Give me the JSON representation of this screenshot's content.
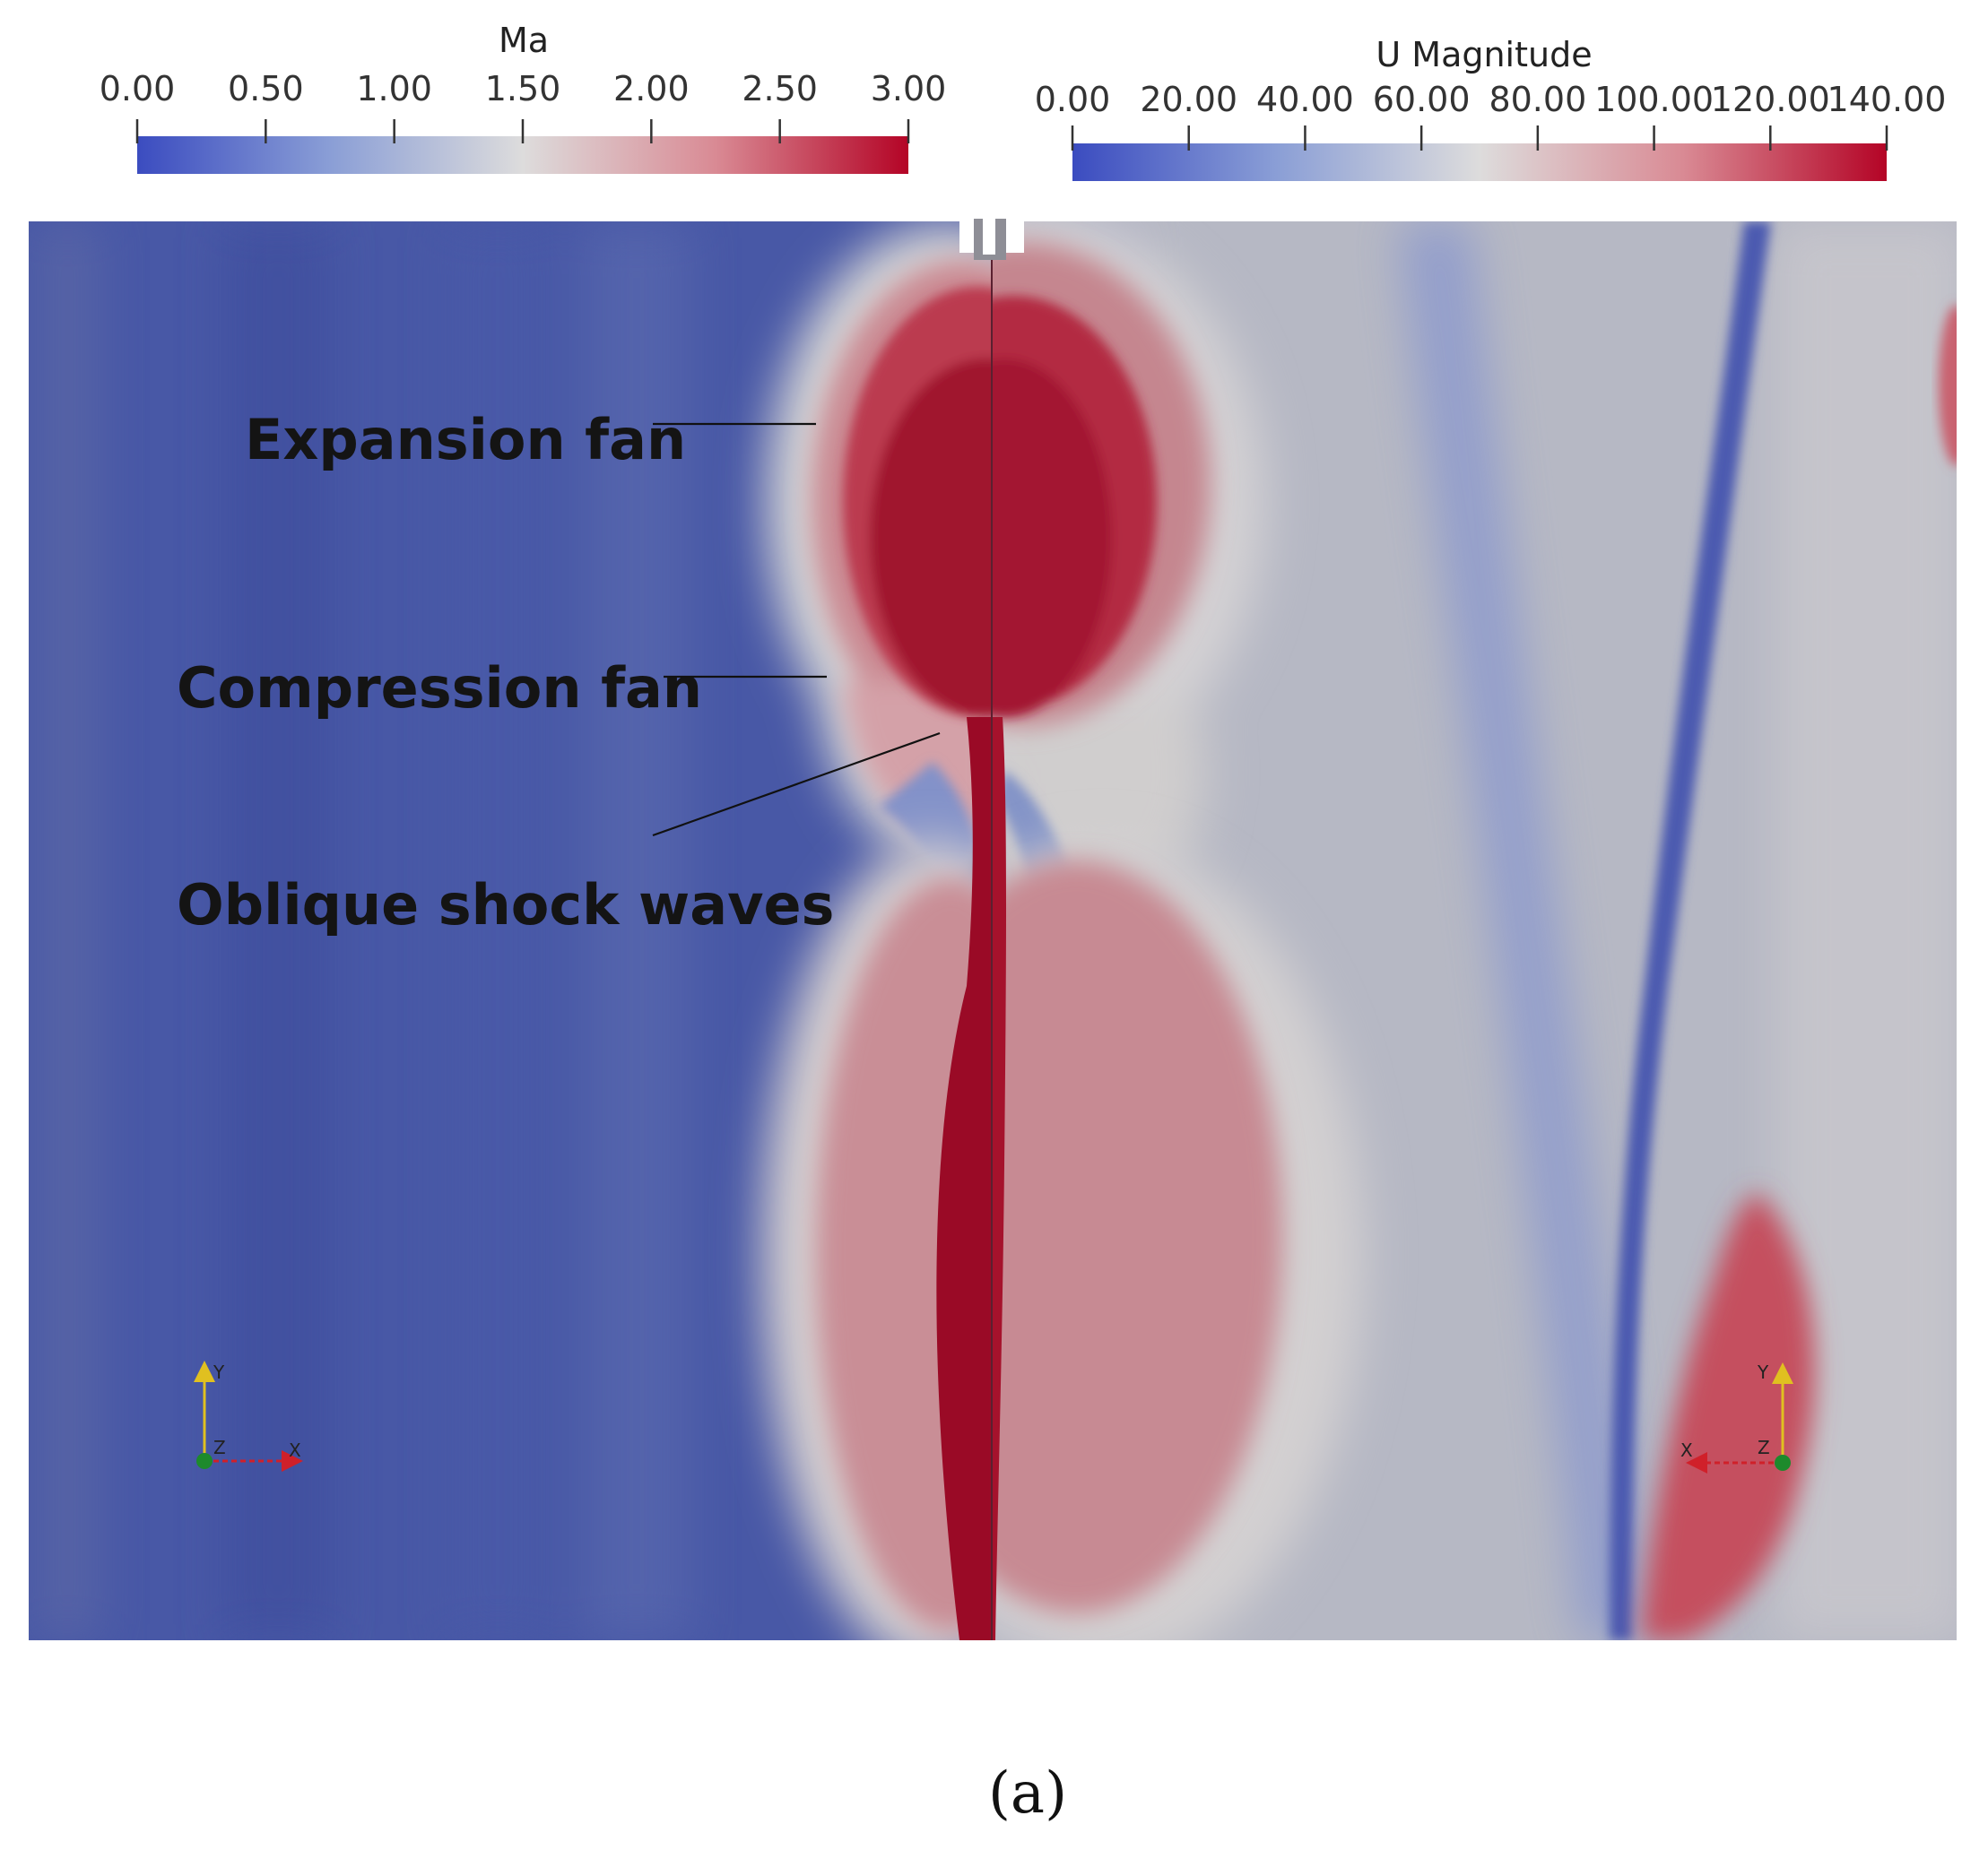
{
  "colorbars": [
    {
      "id": "ma",
      "title": "Ma",
      "ticks": [
        "0.00",
        "0.50",
        "1.00",
        "1.50",
        "2.00",
        "2.50",
        "3.00"
      ]
    },
    {
      "id": "u",
      "title": "U Magnitude",
      "ticks": [
        "0.00",
        "20.00",
        "40.00",
        "60.00",
        "80.00",
        "100.00",
        "120.00",
        "140.00"
      ]
    }
  ],
  "colormap": {
    "low": "#3b4cc0",
    "mid": "#dddcdc",
    "high": "#b40426"
  },
  "annotations": {
    "expansion": "Expansion fan",
    "compression": "Compression fan",
    "oblique": "Oblique shock waves"
  },
  "axes_triads": {
    "left": {
      "y": "Y",
      "z": "Z",
      "x": "X"
    },
    "right": {
      "y": "Y",
      "z": "Z",
      "x": "X"
    }
  },
  "caption": "(a)"
}
